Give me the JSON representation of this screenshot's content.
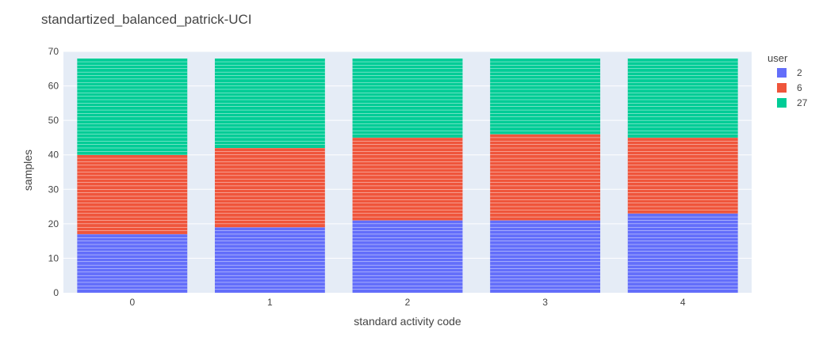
{
  "chart_data": {
    "type": "bar",
    "stacked": true,
    "title": "standartized_balanced_patrick-UCI",
    "xlabel": "standard activity code",
    "ylabel": "samples",
    "categories": [
      "0",
      "1",
      "2",
      "3",
      "4"
    ],
    "ylim": [
      0,
      70
    ],
    "yticks": [
      0,
      10,
      20,
      30,
      40,
      50,
      60,
      70
    ],
    "grid": true,
    "legend_title": "user",
    "legend_position": "top-right",
    "plot_background": "#E5ECF6",
    "series": [
      {
        "name": "2",
        "color": "#636EFA",
        "values": [
          17,
          19,
          21,
          21,
          23
        ]
      },
      {
        "name": "6",
        "color": "#EF553B",
        "values": [
          23,
          23,
          24,
          25,
          22
        ]
      },
      {
        "name": "27",
        "color": "#00CC96",
        "values": [
          28,
          26,
          23,
          22,
          23
        ]
      }
    ]
  }
}
